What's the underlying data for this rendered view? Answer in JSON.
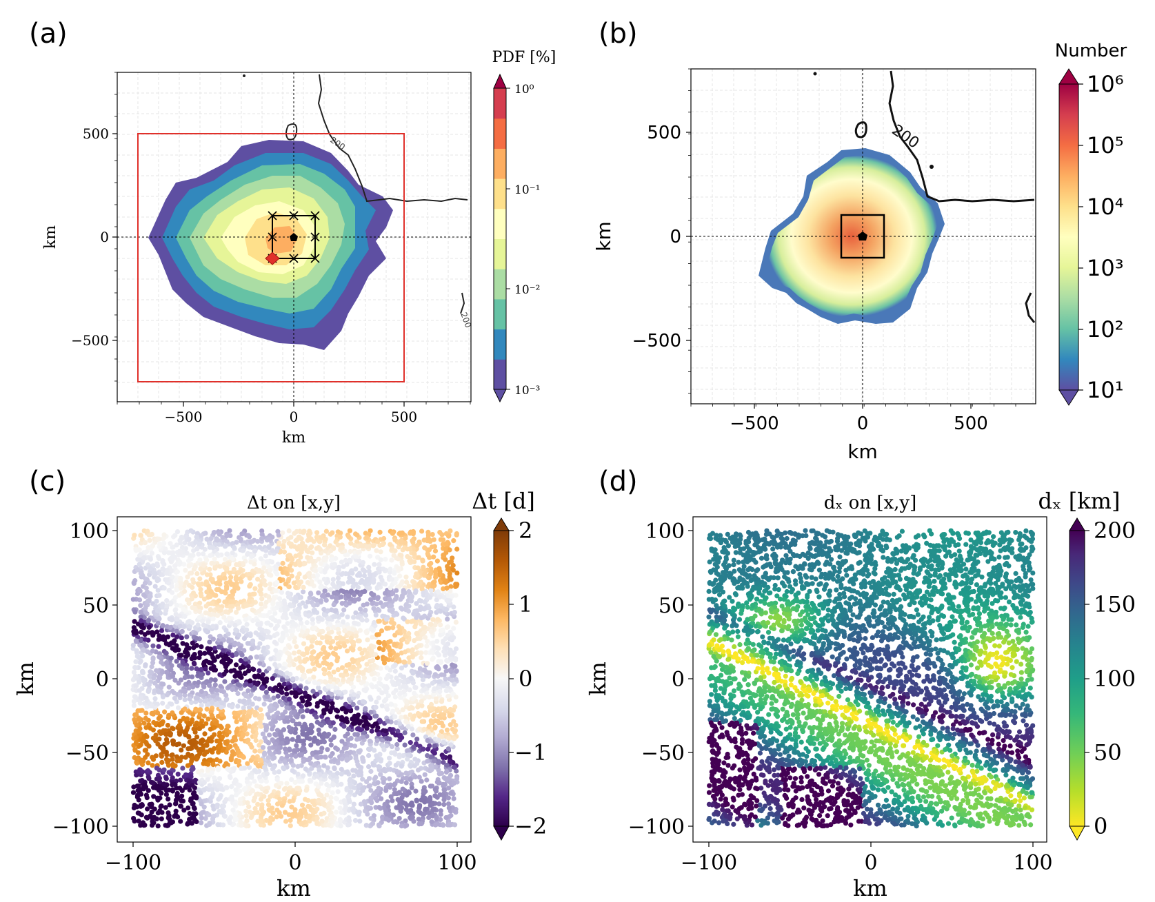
{
  "panels": {
    "a": {
      "label": "(a)",
      "xlabel": "km",
      "ylabel": "km",
      "xticks": [
        "−500",
        "0",
        "500"
      ],
      "yticks": [
        "500",
        "0",
        "−500"
      ],
      "cbar_title": "PDF [%]",
      "cbar_ticks": [
        "10⁰",
        "10⁻¹",
        "10⁻²",
        "10⁻³"
      ],
      "contour_labels": [
        "200",
        "200"
      ]
    },
    "b": {
      "label": "(b)",
      "xlabel": "km",
      "ylabel": "km",
      "xticks": [
        "−500",
        "0",
        "500"
      ],
      "yticks": [
        "500",
        "0",
        "−500"
      ],
      "cbar_title": "Number",
      "cbar_ticks": [
        "10⁶",
        "10⁵",
        "10⁴",
        "10³",
        "10²",
        "10¹"
      ],
      "contour_labels": [
        "200"
      ]
    },
    "c": {
      "label": "(c)",
      "title": "Δt on [x,y]",
      "xlabel": "km",
      "ylabel": "km",
      "xticks": [
        "−100",
        "0",
        "100"
      ],
      "yticks": [
        "100",
        "50",
        "0",
        "−50",
        "−100"
      ],
      "cbar_title": "Δt [d]",
      "cbar_ticks": [
        "2",
        "1",
        "0",
        "−1",
        "−2"
      ]
    },
    "d": {
      "label": "(d)",
      "title": "dₓ on [x,y]",
      "xlabel": "km",
      "ylabel": "km",
      "xticks": [
        "−100",
        "0",
        "100"
      ],
      "yticks": [
        "100",
        "50",
        "0",
        "−50",
        "−100"
      ],
      "cbar_title": "dₓ [km]",
      "cbar_ticks": [
        "200",
        "150",
        "100",
        "50",
        "0"
      ]
    }
  },
  "colors": {
    "spectral": [
      "#5e4fa2",
      "#3288bd",
      "#66c2a5",
      "#abdda4",
      "#e6f598",
      "#ffffbf",
      "#fee08b",
      "#fdae61",
      "#f46d43",
      "#d53e4f",
      "#9e0142"
    ],
    "puor": [
      "#2d004b",
      "#542788",
      "#8073ac",
      "#b2abd2",
      "#d8daeb",
      "#f7f7f7",
      "#fee0b6",
      "#fdb863",
      "#e08214",
      "#b35806",
      "#7f3b08"
    ],
    "viridis_r": [
      "#fde725",
      "#b5de2b",
      "#6ece58",
      "#35b779",
      "#1f9e89",
      "#26828e",
      "#31688e",
      "#3e4989",
      "#482878",
      "#440154"
    ],
    "domain_box": "#e0302a",
    "release_marker": "#e0302a"
  },
  "chart_data": [
    {
      "panel": "a",
      "type": "heatmap",
      "description_source": "filled contour of PDF of particle positions",
      "xlim": [
        -810,
        810
      ],
      "ylim": [
        -810,
        810
      ],
      "x_ticks": [
        -500,
        0,
        500
      ],
      "y_ticks": [
        500,
        0,
        -500
      ],
      "color_scale": "log",
      "color_range": [
        0.001,
        1
      ],
      "levels": [
        0.001,
        0.002,
        0.005,
        0.01,
        0.02,
        0.05,
        0.1,
        0.2,
        0.5,
        1
      ],
      "domain_box": {
        "x": [
          -720,
          500
        ],
        "y": [
          -700,
          500
        ]
      },
      "release_grid": {
        "x": [
          -100,
          0,
          100
        ],
        "y": [
          -100,
          0,
          100
        ]
      },
      "highlighted_release_point": [
        -100,
        -100
      ],
      "origin_marker": [
        0,
        0
      ],
      "contour_label": "200",
      "grid": true
    },
    {
      "panel": "b",
      "type": "heatmap",
      "xlim": [
        -810,
        810
      ],
      "ylim": [
        -810,
        810
      ],
      "x_ticks": [
        -500,
        0,
        500
      ],
      "y_ticks": [
        500,
        0,
        -500
      ],
      "color_scale": "log",
      "color_range": [
        10,
        1000000
      ],
      "peak_value_approx": 200000,
      "release_box": {
        "x": [
          -100,
          100
        ],
        "y": [
          -100,
          100
        ]
      },
      "origin_marker": [
        0,
        0
      ],
      "contour_label": "200",
      "grid": true
    },
    {
      "panel": "c",
      "type": "scatter",
      "title": "Δt on [x,y]",
      "xlim": [
        -105,
        105
      ],
      "ylim": [
        -110,
        102
      ],
      "x_ticks": [
        -100,
        0,
        100
      ],
      "y_ticks": [
        100,
        50,
        0,
        -50,
        -100
      ],
      "color_range": [
        -2,
        2
      ],
      "color_label": "Δt [d]",
      "points_x_range": [
        -100,
        100
      ],
      "points_y_range": [
        -100,
        100
      ]
    },
    {
      "panel": "d",
      "type": "scatter",
      "title": "dₓ on [x,y]",
      "xlim": [
        -105,
        105
      ],
      "ylim": [
        -110,
        102
      ],
      "x_ticks": [
        -100,
        0,
        100
      ],
      "y_ticks": [
        100,
        50,
        0,
        -50,
        -100
      ],
      "color_range": [
        0,
        200
      ],
      "color_label": "dₓ [km]",
      "points_x_range": [
        -100,
        100
      ],
      "points_y_range": [
        -100,
        100
      ]
    }
  ]
}
